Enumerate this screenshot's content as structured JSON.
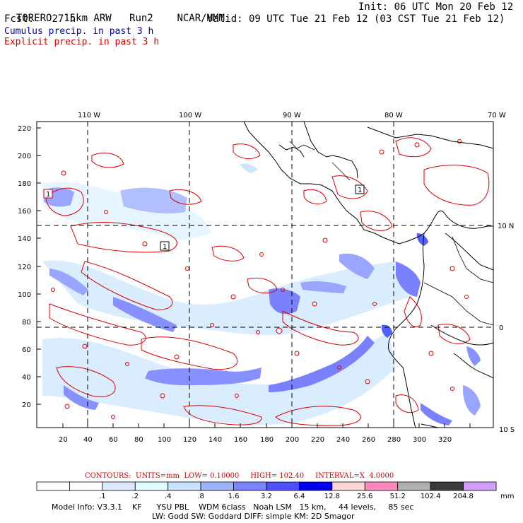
{
  "header": {
    "model": "TORERO  15km ARW",
    "run": "Run2",
    "org": "NCAR/MMM",
    "init": "Init: 06 UTC Mon 20 Feb 12",
    "fcst_label": "Fcst:",
    "fcst_value": "27 h",
    "valid": "Valid: 09 UTC Tue 21 Feb 12 (03 CST Tue 21 Feb 12)",
    "cumulus": "Cumulus precip. in past 3 h",
    "explicit": "Explicit precip. in past 3 h"
  },
  "map": {
    "lon_labels": [
      "110 W",
      "100 W",
      "90 W",
      "80 W",
      "70 W"
    ],
    "lat_labels": [
      "10 N",
      "0",
      "10 S"
    ],
    "left_ticks": [
      "220",
      "200",
      "180",
      "160",
      "140",
      "120",
      "100",
      "80",
      "60",
      "40",
      "20"
    ],
    "bottom_ticks": [
      "20",
      "40",
      "60",
      "80",
      "100",
      "120",
      "140",
      "160",
      "180",
      "200",
      "220",
      "240",
      "260",
      "280",
      "300",
      "320"
    ],
    "box_labels": [
      "1",
      "1",
      "1"
    ]
  },
  "contours": {
    "label": "CONTOURS:",
    "units": "UNITS=mm",
    "low": "LOW= 0.10000",
    "high": "HIGH= 102.40",
    "interval": "INTERVAL=X  4.0000"
  },
  "colorbar": {
    "labels": [
      ".1",
      ".2",
      ".4",
      ".8",
      "1.6",
      "3.2",
      "6.4",
      "12.8",
      "25.6",
      "51.2",
      "102.4",
      "204.8"
    ],
    "unit": "mm",
    "colors": [
      "#ffffff",
      "#ffffff",
      "#dde9ff",
      "#e0ffff",
      "#c7e3ff",
      "#9fb4ff",
      "#7b85ff",
      "#4f4fff",
      "#0000ee",
      "#ffd5d5",
      "#ff88bb",
      "#b0b0b0",
      "#3a3a3a",
      "#d4a0ff"
    ]
  },
  "footer": {
    "line1": "Model Info: V3.3.1    KF      YSU PBL    WDM 6class   Noah LSM   15 km,     44 levels,     85 sec",
    "line2": "LW: Godd SW: Goddard DIFF: simple KM: 2D Smagor"
  }
}
